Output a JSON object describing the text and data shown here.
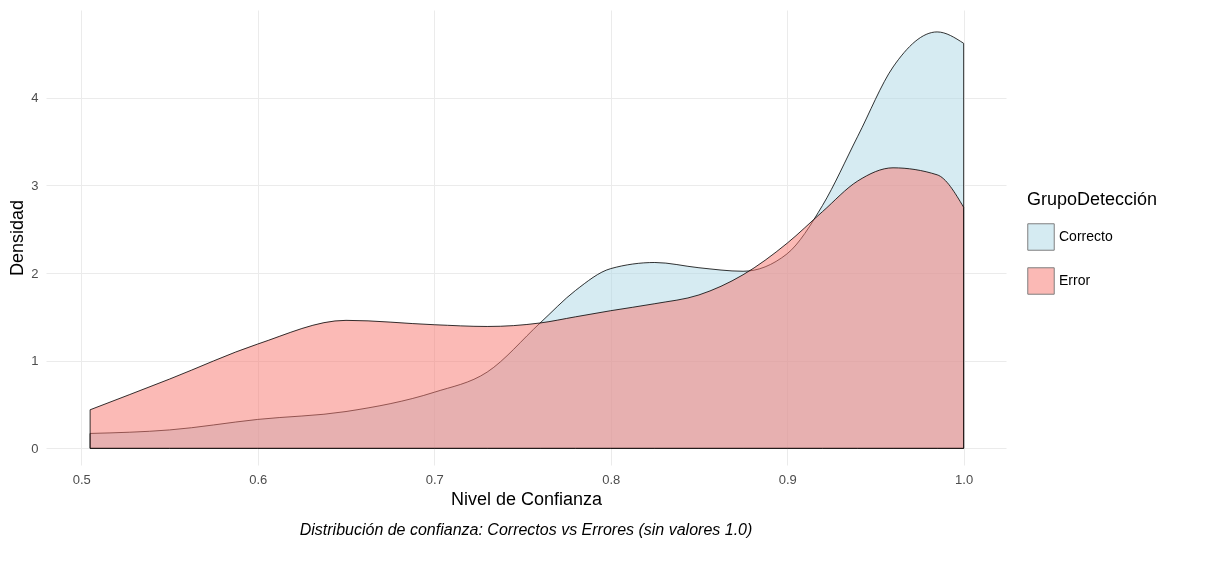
{
  "chart_data": {
    "type": "area",
    "xlabel": "Nivel de Confianza",
    "ylabel": "Densidad",
    "legend_title": "GrupoDetección",
    "annotations": [
      "Distribución de confianza: Correctos vs Errores (sin valores 1.0)"
    ],
    "x": [
      0.505,
      0.55,
      0.6,
      0.65,
      0.7,
      0.73,
      0.76,
      0.78,
      0.8,
      0.825,
      0.85,
      0.875,
      0.9,
      0.92,
      0.94,
      0.96,
      0.985,
      1.0
    ],
    "series": [
      {
        "name": "Correcto",
        "color": "#add8e6",
        "values": [
          0.17,
          0.21,
          0.33,
          0.42,
          0.64,
          0.87,
          1.43,
          1.8,
          2.05,
          2.12,
          2.06,
          2.02,
          2.22,
          2.77,
          3.56,
          4.35,
          4.75,
          4.62
        ]
      },
      {
        "name": "Error",
        "color": "#f8766d",
        "values": [
          0.44,
          0.79,
          1.19,
          1.46,
          1.41,
          1.39,
          1.43,
          1.5,
          1.57,
          1.65,
          1.75,
          1.98,
          2.34,
          2.7,
          3.05,
          3.2,
          3.12,
          2.75
        ]
      }
    ],
    "xlim": [
      0.48,
      1.024
    ],
    "ylim": [
      -0.19,
      5.0
    ],
    "xticks": [
      0.5,
      0.6,
      0.7,
      0.8,
      0.9,
      {
        "value": 1,
        "label": "1.0"
      }
    ],
    "yticks": [
      0,
      1,
      2,
      3,
      4
    ],
    "grid": true,
    "legend": "right",
    "line_style": "solid"
  }
}
